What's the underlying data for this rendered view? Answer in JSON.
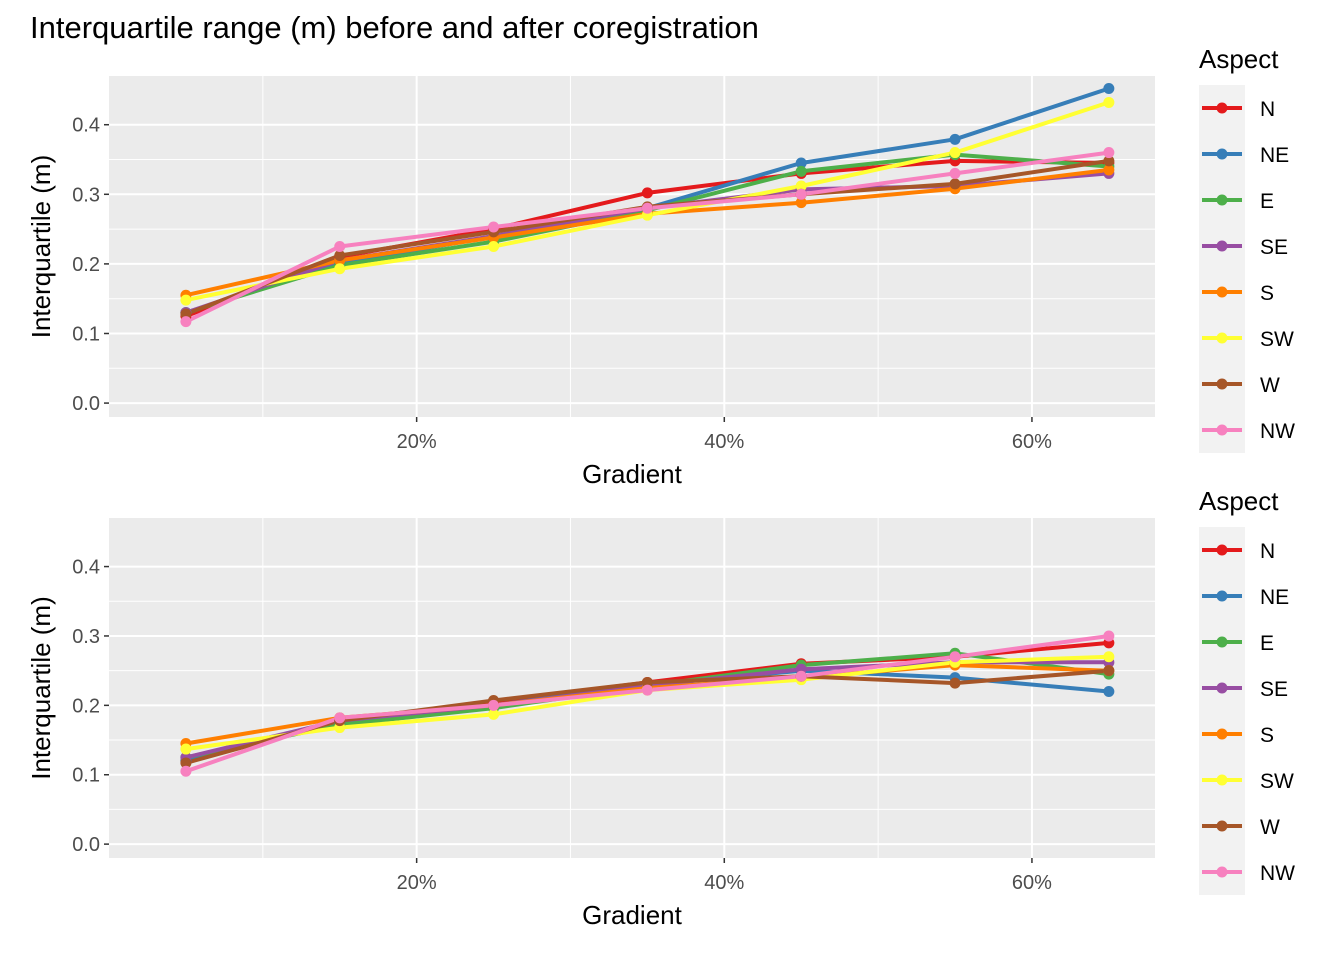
{
  "title": "Interquartile range (m) before and after coregistration",
  "chart_data": [
    {
      "type": "line",
      "xlabel": "Gradient",
      "ylabel": "Interquartile (m)",
      "x": [
        5,
        15,
        25,
        35,
        45,
        55,
        65
      ],
      "xlim": [
        0,
        68
      ],
      "ylim": [
        -0.02,
        0.47
      ],
      "xticks": [
        20,
        40,
        60
      ],
      "xtick_labels": [
        "20%",
        "40%",
        "60%"
      ],
      "yticks": [
        0.0,
        0.1,
        0.2,
        0.3,
        0.4
      ],
      "ytick_labels": [
        "0.0",
        "0.1",
        "0.2",
        "0.3",
        "0.4"
      ],
      "grid": true,
      "legend_title": "Aspect",
      "legend_position": "right",
      "series": [
        {
          "name": "N",
          "color": "#E41A1C",
          "values": [
            0.125,
            0.21,
            0.25,
            0.302,
            0.33,
            0.348,
            0.345
          ]
        },
        {
          "name": "NE",
          "color": "#377EB8",
          "values": [
            0.13,
            0.2,
            0.24,
            0.28,
            0.345,
            0.379,
            0.452
          ]
        },
        {
          "name": "E",
          "color": "#4DAF4A",
          "values": [
            0.13,
            0.198,
            0.232,
            0.277,
            0.333,
            0.357,
            0.34
          ]
        },
        {
          "name": "SE",
          "color": "#984EA3",
          "values": [
            0.13,
            0.205,
            0.24,
            0.28,
            0.307,
            0.312,
            0.33
          ]
        },
        {
          "name": "S",
          "color": "#FF7F00",
          "values": [
            0.155,
            0.205,
            0.238,
            0.272,
            0.288,
            0.308,
            0.335
          ]
        },
        {
          "name": "SW",
          "color": "#FFFF33",
          "values": [
            0.148,
            0.193,
            0.225,
            0.27,
            0.312,
            0.36,
            0.432
          ]
        },
        {
          "name": "W",
          "color": "#A65628",
          "values": [
            0.128,
            0.212,
            0.246,
            0.282,
            0.3,
            0.315,
            0.348
          ]
        },
        {
          "name": "NW",
          "color": "#F781BF",
          "values": [
            0.117,
            0.225,
            0.253,
            0.28,
            0.3,
            0.33,
            0.36
          ]
        }
      ]
    },
    {
      "type": "line",
      "xlabel": "Gradient",
      "ylabel": "Interquartile (m)",
      "x": [
        5,
        15,
        25,
        35,
        45,
        55,
        65
      ],
      "xlim": [
        0,
        68
      ],
      "ylim": [
        -0.02,
        0.47
      ],
      "xticks": [
        20,
        40,
        60
      ],
      "xtick_labels": [
        "20%",
        "40%",
        "60%"
      ],
      "yticks": [
        0.0,
        0.1,
        0.2,
        0.3,
        0.4
      ],
      "ytick_labels": [
        "0.0",
        "0.1",
        "0.2",
        "0.3",
        "0.4"
      ],
      "grid": true,
      "legend_title": "Aspect",
      "legend_position": "right",
      "series": [
        {
          "name": "N",
          "color": "#E41A1C",
          "values": [
            0.12,
            0.175,
            0.205,
            0.233,
            0.26,
            0.27,
            0.29
          ]
        },
        {
          "name": "NE",
          "color": "#377EB8",
          "values": [
            0.12,
            0.175,
            0.2,
            0.23,
            0.25,
            0.24,
            0.22
          ]
        },
        {
          "name": "E",
          "color": "#4DAF4A",
          "values": [
            0.125,
            0.172,
            0.196,
            0.228,
            0.258,
            0.275,
            0.245
          ]
        },
        {
          "name": "SE",
          "color": "#984EA3",
          "values": [
            0.125,
            0.178,
            0.2,
            0.228,
            0.252,
            0.262,
            0.262
          ]
        },
        {
          "name": "S",
          "color": "#FF7F00",
          "values": [
            0.145,
            0.182,
            0.2,
            0.225,
            0.24,
            0.258,
            0.25
          ]
        },
        {
          "name": "SW",
          "color": "#FFFF33",
          "values": [
            0.137,
            0.168,
            0.187,
            0.222,
            0.237,
            0.262,
            0.27
          ]
        },
        {
          "name": "W",
          "color": "#A65628",
          "values": [
            0.117,
            0.178,
            0.207,
            0.233,
            0.242,
            0.232,
            0.25
          ]
        },
        {
          "name": "NW",
          "color": "#F781BF",
          "values": [
            0.105,
            0.182,
            0.2,
            0.222,
            0.242,
            0.27,
            0.3
          ]
        }
      ]
    }
  ]
}
